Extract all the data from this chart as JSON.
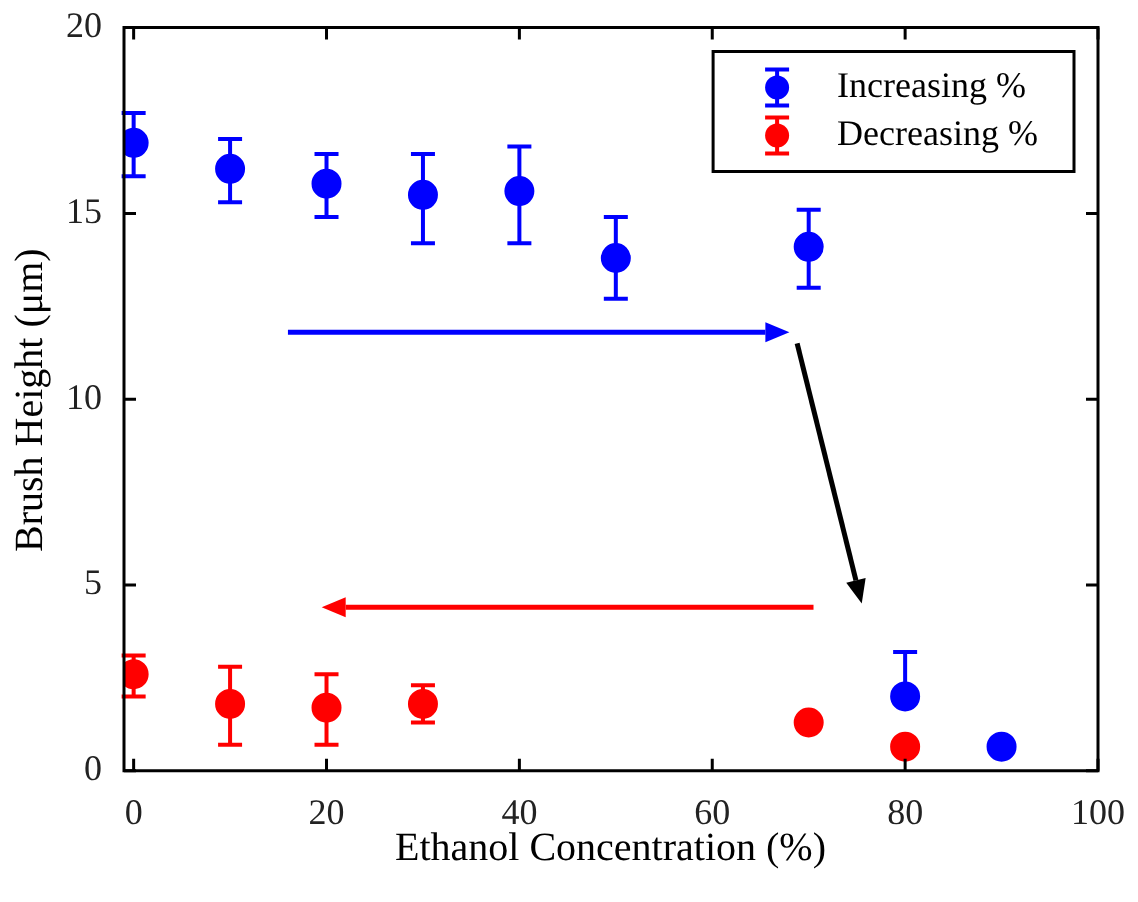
{
  "chart_data": {
    "type": "scatter",
    "xlabel": "Ethanol Concentration (%)",
    "ylabel": "Brush Height (μm)",
    "xlim": [
      -1,
      100
    ],
    "xticks": [
      0,
      20,
      40,
      60,
      80,
      100
    ],
    "ylim": [
      0,
      20
    ],
    "yticks": [
      0,
      5,
      10,
      15,
      20
    ],
    "marker": "circle",
    "legend": "top right",
    "series": [
      {
        "name": "Increasing %",
        "color": "#0000ff",
        "x": [
          0,
          10,
          20,
          30,
          40,
          50,
          70,
          80,
          90
        ],
        "values": [
          16.9,
          16.2,
          15.8,
          15.5,
          15.6,
          13.8,
          14.1,
          2.0,
          0.65
        ],
        "errors": [
          [
            16.0,
            17.7
          ],
          [
            15.3,
            17.0
          ],
          [
            14.9,
            16.6
          ],
          [
            14.2,
            16.6
          ],
          [
            14.2,
            16.8
          ],
          [
            12.7,
            14.9
          ],
          [
            13.0,
            15.1
          ],
          [
            2.0,
            3.2
          ],
          null
        ]
      },
      {
        "name": "Decreasing %",
        "color": "#ff0000",
        "x": [
          0,
          10,
          20,
          30,
          70,
          80
        ],
        "values": [
          2.6,
          1.8,
          1.7,
          1.8,
          1.3,
          0.65
        ],
        "errors": [
          [
            2.0,
            3.1
          ],
          [
            0.7,
            2.8
          ],
          [
            0.7,
            2.6
          ],
          [
            1.3,
            2.3
          ],
          null,
          null
        ]
      }
    ]
  }
}
